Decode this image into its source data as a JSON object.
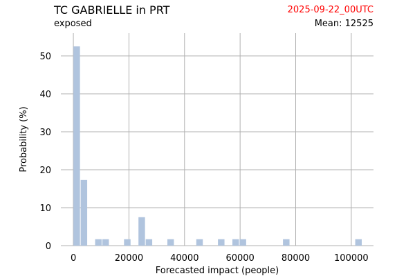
{
  "header": {
    "title": "TC GABRIELLE in PRT",
    "subtitle": "exposed",
    "date": "2025-09-22_00UTC",
    "mean": "Mean: 12525"
  },
  "chart_data": {
    "type": "bar",
    "title": "TC GABRIELLE in PRT",
    "xlabel": "Forecasted impact (people)",
    "ylabel": "Probability (%)",
    "xlim": [
      -4500,
      108000
    ],
    "ylim": [
      0,
      56
    ],
    "xticks": [
      0,
      20000,
      40000,
      60000,
      80000,
      100000
    ],
    "xtick_labels": [
      "0",
      "20000",
      "40000",
      "60000",
      "80000",
      "100000"
    ],
    "yticks": [
      0,
      10,
      20,
      30,
      40,
      50
    ],
    "grid": true,
    "bar_color": "#b0c4de",
    "bin_width": 2600,
    "bins": [
      {
        "x": 1200,
        "value": 52.5
      },
      {
        "x": 3800,
        "value": 17.3
      },
      {
        "x": 9000,
        "value": 1.7
      },
      {
        "x": 11600,
        "value": 1.7
      },
      {
        "x": 19400,
        "value": 1.7
      },
      {
        "x": 24600,
        "value": 7.5
      },
      {
        "x": 27200,
        "value": 1.7
      },
      {
        "x": 35000,
        "value": 1.7
      },
      {
        "x": 45400,
        "value": 1.7
      },
      {
        "x": 53200,
        "value": 1.7
      },
      {
        "x": 58400,
        "value": 1.7
      },
      {
        "x": 61000,
        "value": 1.7
      },
      {
        "x": 76600,
        "value": 1.7
      },
      {
        "x": 102600,
        "value": 1.7
      }
    ]
  }
}
